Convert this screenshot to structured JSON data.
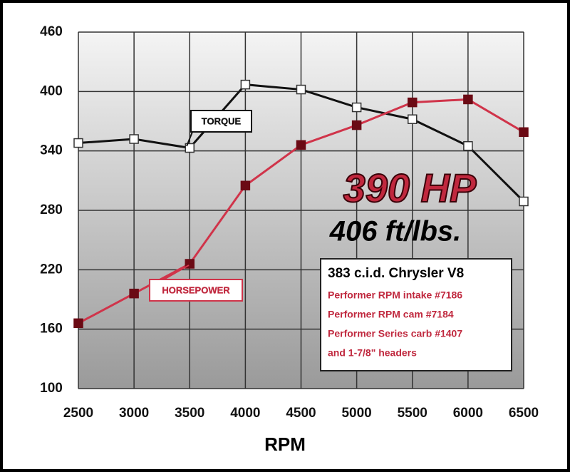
{
  "chart_data": {
    "type": "line",
    "x": [
      2500,
      3000,
      3500,
      4000,
      4500,
      5000,
      5500,
      6000,
      6500
    ],
    "series": [
      {
        "name": "TORQUE",
        "color": "#111111",
        "marker_fill": "#ffffff",
        "values": [
          348,
          352,
          343,
          407,
          402,
          384,
          372,
          345,
          289
        ]
      },
      {
        "name": "HORSEPOWER",
        "color": "#d0344a",
        "marker_fill": "#6b0a14",
        "values": [
          166,
          196,
          226,
          305,
          346,
          366,
          389,
          392,
          359
        ]
      }
    ],
    "xlabel": "RPM",
    "xlim": [
      2500,
      6500
    ],
    "xticks": [
      2500,
      3000,
      3500,
      4000,
      4500,
      5000,
      5500,
      6000,
      6500
    ],
    "ylim": [
      100,
      460
    ],
    "yticks": [
      100,
      160,
      220,
      280,
      340,
      400,
      460
    ],
    "grid": true,
    "annotations": [
      "390 HP",
      "406 ft/lbs."
    ],
    "info_box": [
      "383 c.i.d. Chrysler V8",
      "Performer RPM intake #7186",
      "Performer RPM cam #7184",
      "Performer Series carb #1407",
      "and 1-7/8\" headers"
    ]
  }
}
